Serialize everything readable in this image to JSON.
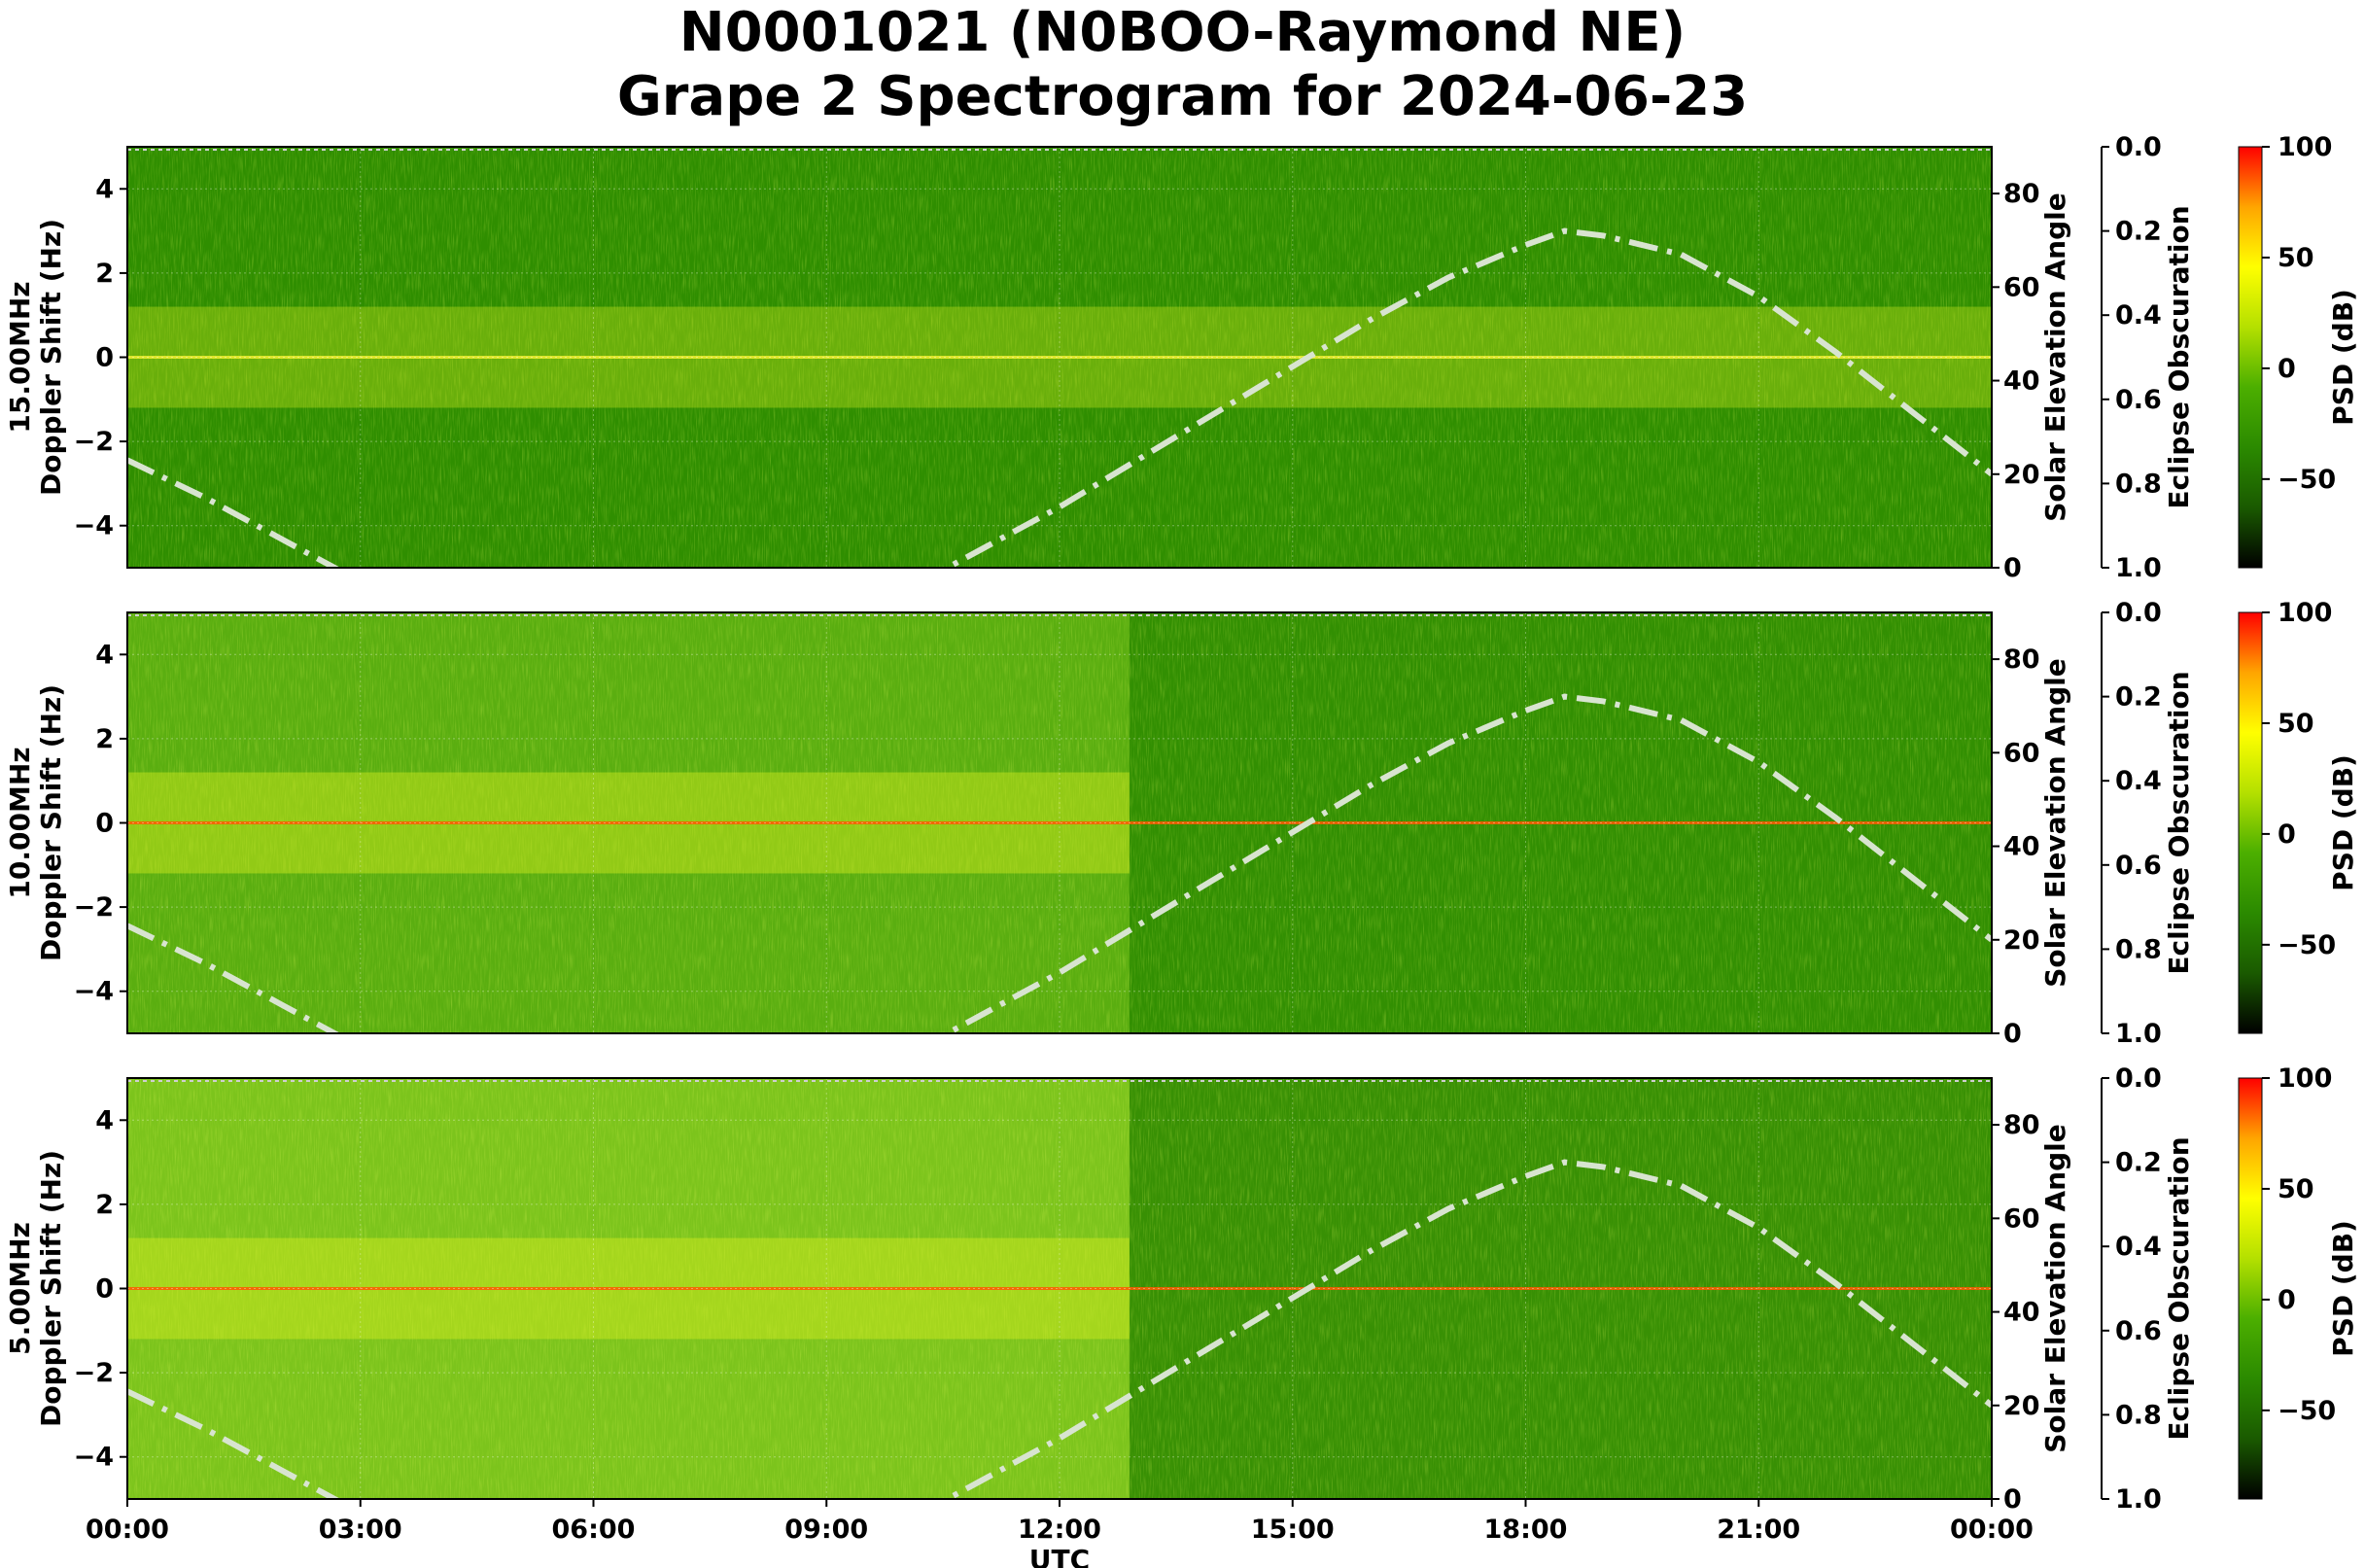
{
  "title_line1": "N0001021 (N0BOO-Raymond NE)",
  "title_line2": "Grape 2 Spectrogram for 2024-06-23",
  "chart_data": {
    "type": "heatmap",
    "x_label": "UTC",
    "x_ticks": [
      "00:00",
      "03:00",
      "06:00",
      "09:00",
      "12:00",
      "15:00",
      "18:00",
      "21:00",
      "00:00"
    ],
    "x_range_hours": [
      0,
      24
    ],
    "y_label_suffix": "Doppler Shift (Hz)",
    "y_range": [
      -5,
      5
    ],
    "y_ticks": [
      "4",
      "2",
      "0",
      "−2",
      "−4"
    ],
    "right_axis_label": "Solar Elevation Angle",
    "right_axis_range": [
      0,
      90
    ],
    "right_axis_ticks": [
      "0",
      "20",
      "40",
      "60",
      "80"
    ],
    "obscuration_label": "Eclipse Obscuration",
    "obscuration_ticks": [
      "0.0",
      "0.2",
      "0.4",
      "0.6",
      "0.8",
      "1.0"
    ],
    "colorbar_label": "PSD (dB)",
    "colorbar_range": [
      -90,
      100
    ],
    "colorbar_ticks": [
      "100",
      "50",
      "0",
      "−50"
    ],
    "colormap": [
      "#000000",
      "#1a5a00",
      "#2b8a00",
      "#4caf00",
      "#b4e000",
      "#ffff00",
      "#ffa500",
      "#ff0000"
    ],
    "elevation_curve_color": "#d8e4d0",
    "solar_elevation": {
      "hours": [
        0,
        1,
        2,
        3,
        4,
        5,
        6,
        7,
        8,
        9,
        10,
        11,
        12,
        13,
        14,
        15,
        16,
        17,
        18,
        18.5,
        19,
        20,
        21,
        22,
        23,
        24
      ],
      "degrees": [
        23,
        15,
        6,
        -3,
        -11,
        -17,
        -21,
        -22,
        -20,
        -13,
        -5,
        4,
        13,
        23,
        33,
        43,
        53,
        62,
        69,
        72,
        71,
        67,
        58,
        46,
        33,
        20
      ]
    },
    "panels": [
      {
        "freq_label": "15.00MHz",
        "background": "#2f8e00",
        "day_background": "#2a8a00",
        "night_green": "#3a9a00"
      },
      {
        "freq_label": "10.00MHz",
        "background": "#5aae10",
        "day_background": "#2c8a00",
        "night_green": "#7cc020"
      },
      {
        "freq_label": "5.00MHz",
        "background": "#7cc41c",
        "day_background": "#2d8700",
        "night_green": "#94d02a"
      }
    ]
  }
}
